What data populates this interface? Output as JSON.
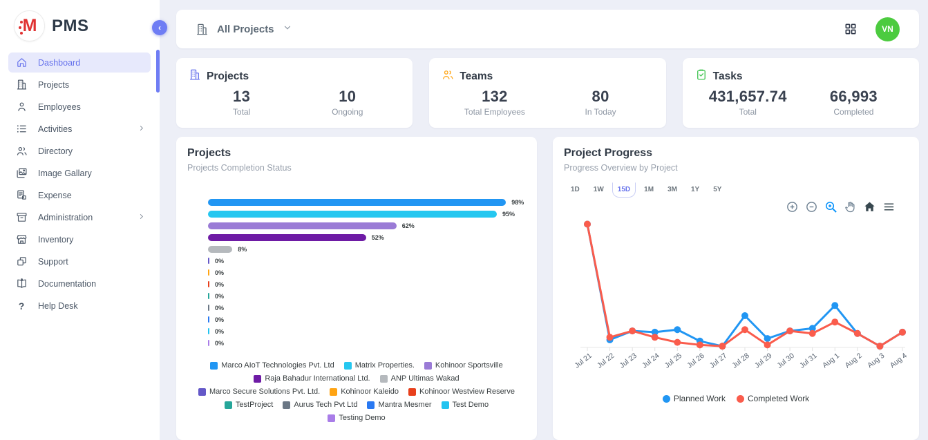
{
  "app": {
    "name": "PMS",
    "logo_letter": "M",
    "logo_color": "#E03131"
  },
  "topbar": {
    "scope_label": "All Projects",
    "avatar_initials": "VN",
    "avatar_color": "#4CCB3F"
  },
  "sidebar": {
    "items": [
      {
        "label": "Dashboard",
        "icon": "home-icon",
        "active": true
      },
      {
        "label": "Projects",
        "icon": "building-icon"
      },
      {
        "label": "Employees",
        "icon": "person-icon"
      },
      {
        "label": "Activities",
        "icon": "list-icon",
        "expandable": true
      },
      {
        "label": "Directory",
        "icon": "people-icon"
      },
      {
        "label": "Image Gallary",
        "icon": "gallery-icon"
      },
      {
        "label": "Expense",
        "icon": "receipt-icon"
      },
      {
        "label": "Administration",
        "icon": "archive-icon",
        "expandable": true
      },
      {
        "label": "Inventory",
        "icon": "store-icon"
      },
      {
        "label": "Support",
        "icon": "copy-icon"
      },
      {
        "label": "Documentation",
        "icon": "book-icon"
      },
      {
        "label": "Help Desk",
        "icon": "question-icon"
      }
    ]
  },
  "stats": [
    {
      "title": "Projects",
      "icon": "building-icon",
      "accent": "#6571EC",
      "metrics": [
        {
          "value": "13",
          "label": "Total"
        },
        {
          "value": "10",
          "label": "Ongoing"
        }
      ]
    },
    {
      "title": "Teams",
      "icon": "people-icon",
      "accent": "#FFA81C",
      "metrics": [
        {
          "value": "132",
          "label": "Total Employees"
        },
        {
          "value": "80",
          "label": "In Today"
        }
      ]
    },
    {
      "title": "Tasks",
      "icon": "clipboard-check-icon",
      "accent": "#43C553",
      "metrics": [
        {
          "value": "431,657.74",
          "label": "Total"
        },
        {
          "value": "66,993",
          "label": "Completed"
        }
      ]
    }
  ],
  "chart_data": [
    {
      "type": "bar",
      "orientation": "horizontal",
      "title": "Projects",
      "subtitle": "Projects Completion Status",
      "unit": "%",
      "xlim": [
        0,
        100
      ],
      "legend_position": "bottom",
      "categories": [
        "Marco AIoT Technologies Pvt. Ltd",
        "Matrix Properties.",
        "Kohinoor Sportsville",
        "Raja Bahadur International Ltd.",
        "ANP Ultimas Wakad",
        "Marco Secure Solutions Pvt. Ltd.",
        "Kohinoor Kaleido",
        "Kohinoor Westview Reserve",
        "TestProject",
        "Aurus Tech Pvt Ltd",
        "Mantra Mesmer",
        "Test Demo",
        "Testing Demo"
      ],
      "values": [
        98,
        95,
        62,
        52,
        8,
        0,
        0,
        0,
        0,
        0,
        0,
        0,
        0
      ],
      "colors": [
        "#2196F3",
        "#25C7F0",
        "#9A7BD6",
        "#6E1BA5",
        "#B5B9BD",
        "#6458C8",
        "#FFA413",
        "#E8401C",
        "#26A69A",
        "#6B7785",
        "#2979F2",
        "#22C3F0",
        "#A97DE8"
      ]
    },
    {
      "type": "line",
      "title": "Project Progress",
      "subtitle": "Progress Overview by Project",
      "range_buttons": [
        "1D",
        "1W",
        "15D",
        "1M",
        "3M",
        "1Y",
        "5Y"
      ],
      "selected_range": "15D",
      "toolbar_icons": [
        "zoom-in-icon",
        "zoom-out-icon",
        "selection-zoom-icon",
        "pan-icon",
        "home-reset-icon",
        "menu-icon"
      ],
      "x": [
        "Jul 21",
        "Jul 22",
        "Jul 23",
        "Jul 24",
        "Jul 25",
        "Jul 26",
        "Jul 27",
        "Jul 28",
        "Jul 29",
        "Jul 30",
        "Jul 31",
        "Aug 1",
        "Aug 2",
        "Aug 3",
        "Aug 4"
      ],
      "series": [
        {
          "name": "Planned Work",
          "color": "#2196F3",
          "values": [
            97,
            6,
            13,
            12,
            14,
            5,
            1,
            25,
            7,
            13,
            15,
            33,
            11,
            1,
            12
          ]
        },
        {
          "name": "Completed Work",
          "color": "#FA5C4C",
          "values": [
            97,
            8,
            13,
            8,
            4,
            2,
            1,
            14,
            2,
            13,
            11,
            20,
            11,
            1,
            12
          ]
        }
      ],
      "ylim": [
        0,
        100
      ],
      "grid": false,
      "legend_position": "bottom"
    }
  ]
}
